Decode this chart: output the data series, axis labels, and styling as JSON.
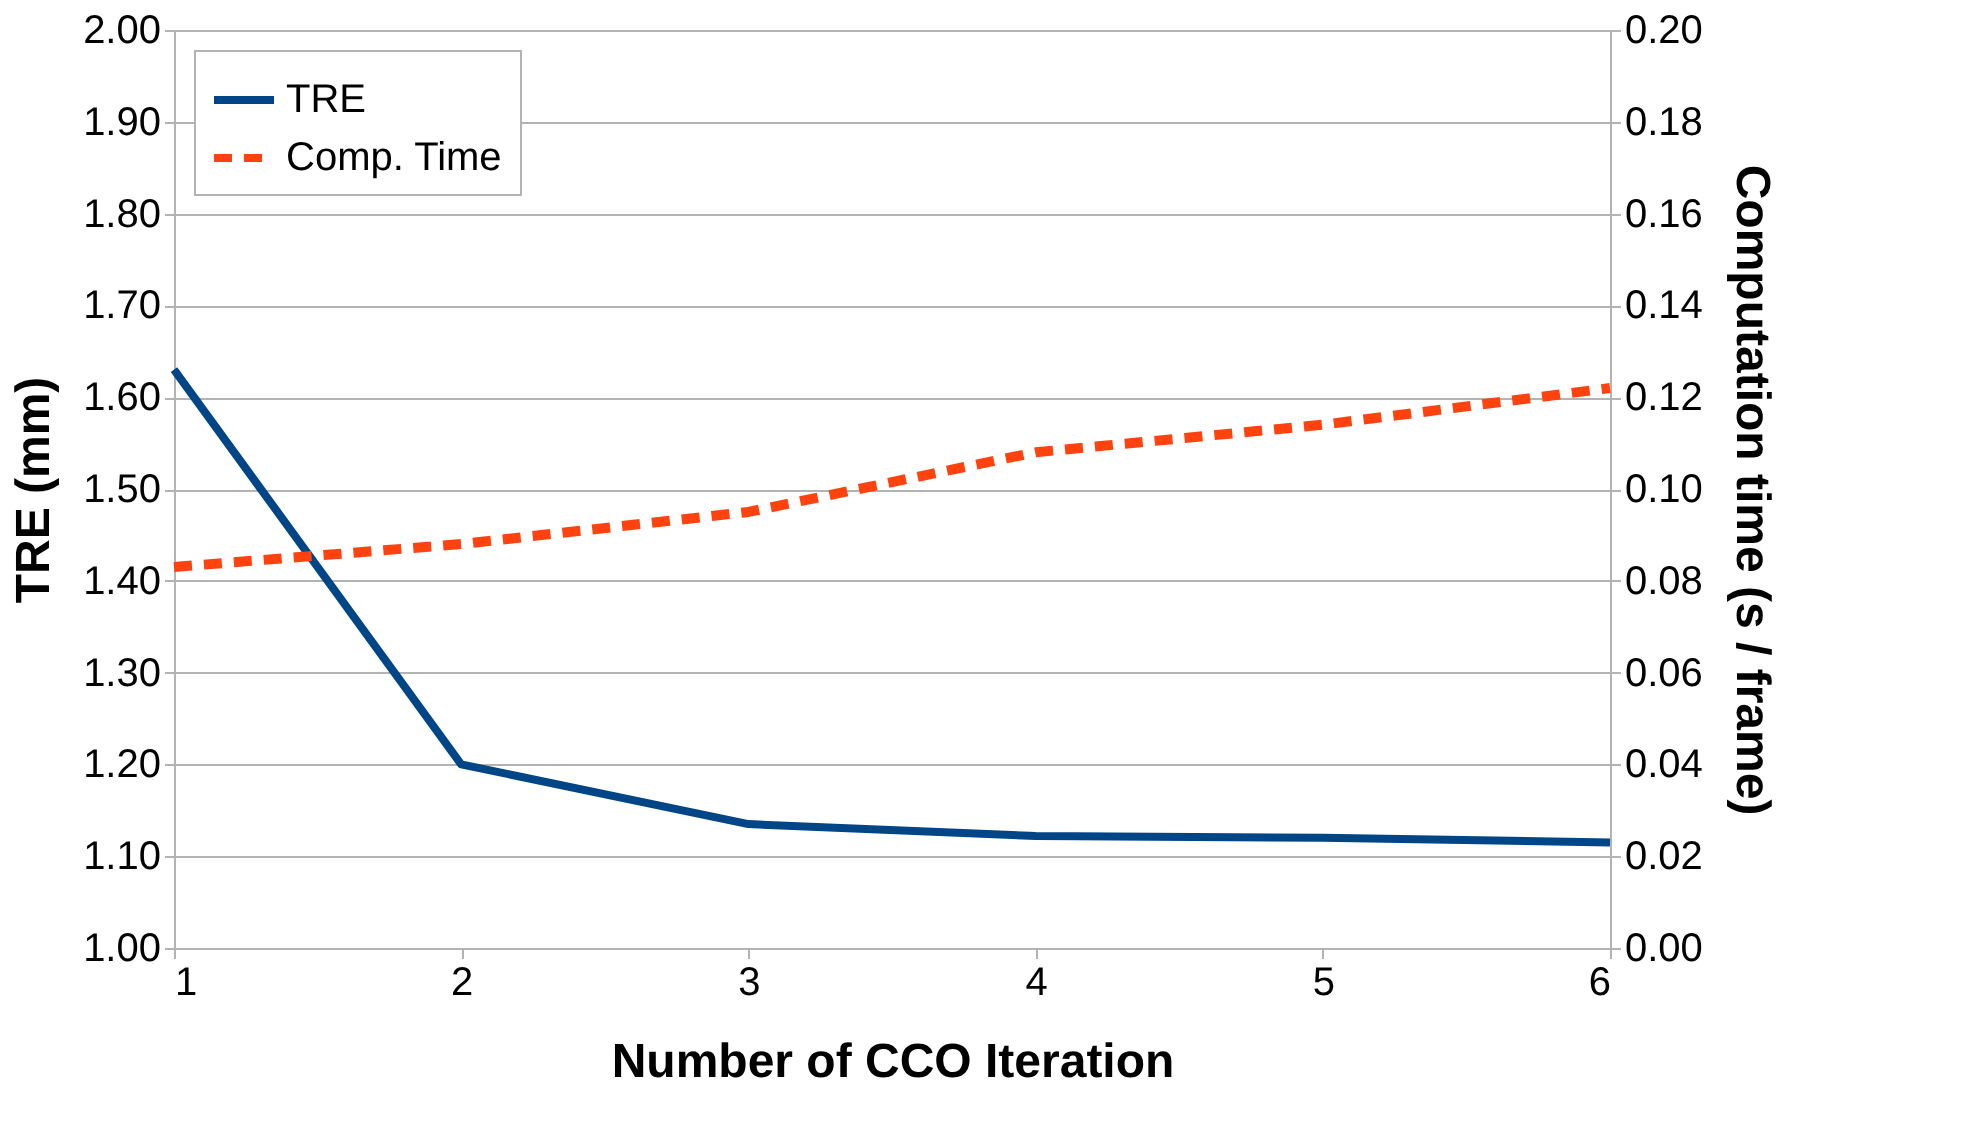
{
  "chart_data": {
    "type": "line",
    "xlabel": "Number of CCO Iteration",
    "ylabel": "TRE (mm)",
    "y2label": "Computation time (s / frame)",
    "x": [
      1,
      2,
      3,
      4,
      5,
      6
    ],
    "series": [
      {
        "name": "TRE",
        "color": "#004586",
        "values": [
          1.63,
          1.2,
          1.135,
          1.122,
          1.12,
          1.115
        ],
        "line_style": "solid"
      },
      {
        "name": "Comp. Time",
        "color": "#ff420e",
        "values": [
          0.083,
          0.088,
          0.095,
          0.108,
          0.114,
          0.122
        ],
        "axis": "y2",
        "line_style": "dashed"
      }
    ],
    "xlim": [
      1,
      6
    ],
    "xticks": [
      1,
      2,
      3,
      4,
      5,
      6
    ],
    "ylim": [
      1,
      2
    ],
    "yticks": [
      {
        "value": 1,
        "label": "1.00"
      },
      {
        "value": 1.1,
        "label": "1.10"
      },
      {
        "value": 1.2,
        "label": "1.20"
      },
      {
        "value": 1.3,
        "label": "1.30"
      },
      {
        "value": 1.4,
        "label": "1.40"
      },
      {
        "value": 1.5,
        "label": "1.50"
      },
      {
        "value": 1.6,
        "label": "1.60"
      },
      {
        "value": 1.7,
        "label": "1.70"
      },
      {
        "value": 1.8,
        "label": "1.80"
      },
      {
        "value": 1.9,
        "label": "1.90"
      },
      {
        "value": 2,
        "label": "2.00"
      }
    ],
    "y2lim": [
      0,
      0.2
    ],
    "y2ticks": [
      {
        "value": 0,
        "label": "0.00"
      },
      {
        "value": 0.02,
        "label": "0.02"
      },
      {
        "value": 0.04,
        "label": "0.04"
      },
      {
        "value": 0.06,
        "label": "0.06"
      },
      {
        "value": 0.08,
        "label": "0.08"
      },
      {
        "value": 0.1,
        "label": "0.10"
      },
      {
        "value": 0.12,
        "label": "0.12"
      },
      {
        "value": 0.14,
        "label": "0.14"
      },
      {
        "value": 0.16,
        "label": "0.16"
      },
      {
        "value": 0.18,
        "label": "0.18"
      },
      {
        "value": 0.2,
        "label": "0.20"
      }
    ],
    "grid": "y",
    "legend": "top left",
    "marker": "none"
  }
}
